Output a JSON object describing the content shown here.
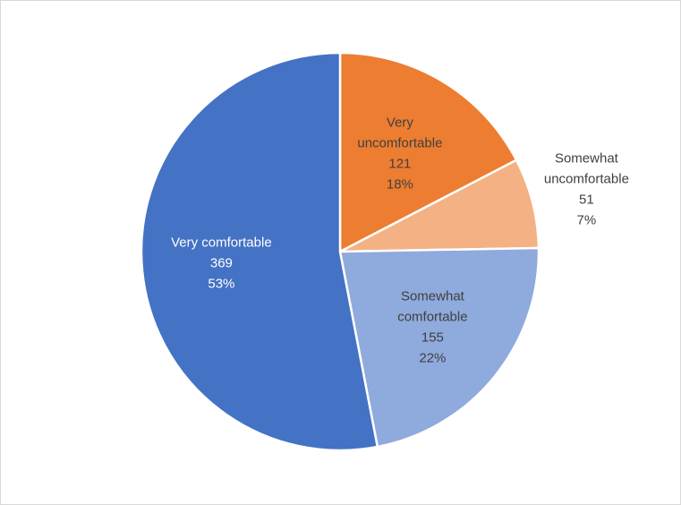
{
  "chart_data": {
    "type": "pie",
    "title": "",
    "slices": [
      {
        "label": "Very uncomfortable",
        "label_lines": [
          "Very",
          "uncomfortable"
        ],
        "value": 121,
        "value_label": "121",
        "percent": "18%",
        "color": "#ED7D31"
      },
      {
        "label": "Somewhat uncomfortable",
        "label_lines": [
          "Somewhat",
          "uncomfortable"
        ],
        "value": 51,
        "value_label": "51",
        "percent": "7%",
        "color": "#F4B183"
      },
      {
        "label": "Somewhat comfortable",
        "label_lines": [
          "Somewhat",
          "comfortable"
        ],
        "value": 155,
        "value_label": "155",
        "percent": "22%",
        "color": "#8FAADC"
      },
      {
        "label": "Very comfortable",
        "label_lines": [
          "Very comfortable"
        ],
        "value": 369,
        "value_label": "369",
        "percent": "53%",
        "color": "#4472C4"
      }
    ],
    "legend": "none",
    "label_placement": "inside-and-outside"
  }
}
